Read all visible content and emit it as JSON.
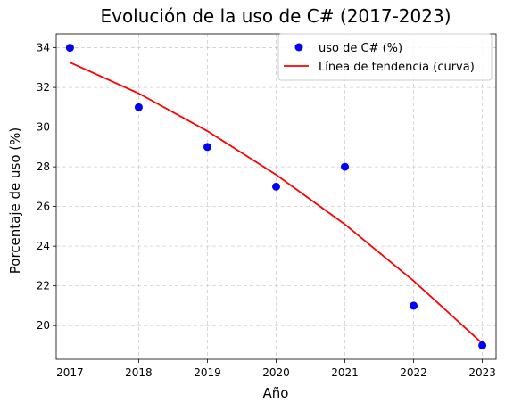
{
  "colors": {
    "scatter": "#0000ff",
    "trend": "#ff0000",
    "grid": "#cfcfcf",
    "legend_border": "#cccccc"
  },
  "chart_data": {
    "type": "scatter",
    "title": "Evolución de la uso de C# (2017-2023)",
    "xlabel": "Año",
    "ylabel": "Porcentaje de uso (%)",
    "x": [
      2017,
      2018,
      2019,
      2020,
      2021,
      2022,
      2023
    ],
    "xlim": [
      2016.8,
      2023.2
    ],
    "ylim": [
      18.3,
      34.7
    ],
    "xticks": [
      "2017",
      "2018",
      "2019",
      "2020",
      "2021",
      "2022",
      "2023"
    ],
    "yticks": [
      20,
      22,
      24,
      26,
      28,
      30,
      32,
      34
    ],
    "grid": true,
    "legend_position": "top-right",
    "series": [
      {
        "name": "uso de C# (%)",
        "type": "scatter",
        "color": "#0000ff",
        "values": [
          34,
          31,
          29,
          27,
          28,
          21,
          19
        ]
      },
      {
        "name": "Línea de tendencia (curva)",
        "type": "line",
        "color": "#ff0000",
        "values": [
          33.26,
          31.7,
          29.8,
          27.6,
          25.1,
          22.25,
          19.1
        ]
      }
    ]
  }
}
